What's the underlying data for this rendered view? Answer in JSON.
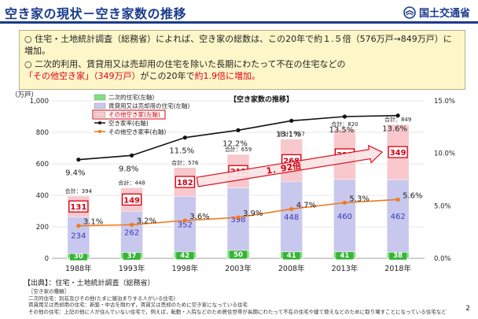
{
  "header": {
    "title": "空き家の現状－空き家数の推移",
    "ministry": "国土交通省"
  },
  "summary": {
    "p1": "○ 住宅・土地統計調査（総務省）によれば、空き家の総数は、この20年で約１.５倍（576万戸→849万戸）に増加。",
    "p2_a": "○ 二次的利用、賃貸用又は売却用の住宅を除いた長期にわたって不在の住宅などの",
    "p2_red1": "「その他空き家」（349万戸）",
    "p2_b": "がこの20年で",
    "p2_red2": "約1.9倍に増加。"
  },
  "chart_data": {
    "type": "bar",
    "title": "【空き家数の推移】",
    "y_unit_label": "（万戸）",
    "categories": [
      "1988年",
      "1993年",
      "1998年",
      "2003年",
      "2008年",
      "2013年",
      "2018年"
    ],
    "series": [
      {
        "name": "二次的住宅(左軸)",
        "color": "#7fe07f",
        "values": [
          30,
          37,
          42,
          50,
          41,
          41,
          38
        ]
      },
      {
        "name": "賃貸用又は売却用の住宅(左軸)",
        "color": "#c8c8ee",
        "values": [
          234,
          262,
          352,
          398,
          448,
          460,
          462
        ]
      },
      {
        "name": "その他空き家(左軸)",
        "color": "#f8c8cc",
        "values": [
          131,
          149,
          182,
          212,
          268,
          318,
          349
        ]
      }
    ],
    "totals": [
      "合計：394",
      "合計：448",
      "合計：576",
      "合計：659",
      "合計：757",
      "合計：820",
      "合計：849"
    ],
    "lines": [
      {
        "name": "空き家率(右軸)",
        "color": "#111111",
        "values": [
          9.4,
          9.8,
          11.5,
          12.2,
          13.1,
          13.5,
          13.6
        ],
        "labels": [
          "9.4%",
          "9.8%",
          "11.5%",
          "12.2%",
          "13.1%",
          "13.5%",
          "13.6%"
        ]
      },
      {
        "name": "その他空き家率(右軸)",
        "color": "#f07a1a",
        "values": [
          3.1,
          3.2,
          3.6,
          3.9,
          4.7,
          5.3,
          5.6
        ],
        "labels": [
          "3.1%",
          "3.2%",
          "3.6%",
          "3.9%",
          "4.7%",
          "5.3%",
          "5.6%"
        ]
      }
    ],
    "y_left": {
      "min": 0,
      "max": 1000,
      "ticks": [
        "0",
        "200",
        "400",
        "600",
        "800",
        "1,000"
      ]
    },
    "y_right": {
      "min": 0,
      "max": 15,
      "ticks": [
        "0.0%",
        "5.0%",
        "10.0%",
        "15.0%"
      ]
    },
    "annotation": "1．92倍"
  },
  "footer": {
    "source": "【出典】：住宅・土地統計調査（総務省）",
    "notes_title": "［空き家の種類］",
    "note1": "二次的住宅：別荘及びその他(たまに寝泊まりする人がいる住宅)",
    "note2": "賃貸用又は売却用の住宅：新築・中古を問わず，賃貸又は売却のために空き家になっている住宅",
    "note3": "その他の住宅：上記の他に人が住んでいない住宅で，例えば，転勤・入院などのため居住世帯が長期にわたって不在の住宅や建て替えなどのために取り壊すことになっている住宅など",
    "page": "2"
  }
}
